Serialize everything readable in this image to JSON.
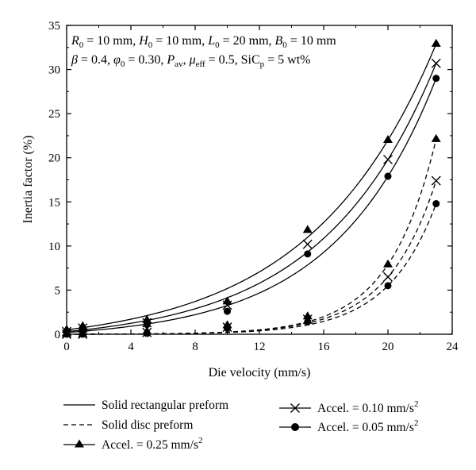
{
  "chart_data": {
    "type": "line",
    "xlabel": "Die velocity (mm/s)",
    "ylabel": "Inertia factor (%)",
    "xlim": [
      0,
      24
    ],
    "ylim": [
      0,
      35
    ],
    "xticks": [
      0,
      4,
      8,
      12,
      16,
      20,
      24
    ],
    "yticks": [
      0,
      5,
      10,
      15,
      20,
      25,
      30,
      35
    ],
    "xtick_labels": [
      "0",
      "4",
      "8",
      "12",
      "16",
      "20",
      "24"
    ],
    "ytick_labels": [
      "0",
      "5",
      "10",
      "15",
      "20",
      "25",
      "30",
      "35"
    ],
    "grid": false,
    "annotation": {
      "line1": "R0 = 10 mm, H0 = 10 mm, L0 = 20 mm, B0 = 10 mm",
      "line2": "β = 0.4, φ0 = 0.30, Pav, μeff = 0.5, SiCp = 5 wt%",
      "r0": "R",
      "r0_sub": "0",
      "r0_val": " = 10 mm, ",
      "h0": "H",
      "h0_sub": "0",
      "h0_val": " = 10 mm, ",
      "l0": "L",
      "l0_sub": "0",
      "l0_val": " = 20 mm, ",
      "b0": "B",
      "b0_sub": "0",
      "b0_val": " = 10 mm",
      "beta": "β",
      "beta_val": " = 0.4, ",
      "phi": "φ",
      "phi_sub": "0",
      "phi_val": " = 0.30, ",
      "p": "P",
      "p_sub": "av",
      "p_val": ", ",
      "mu": "μ",
      "mu_sub": "eff",
      "mu_val": " = 0.5, ",
      "sic": "SiC",
      "sic_sub": "p",
      "sic_val": " = 5 wt%"
    },
    "x": [
      0,
      1,
      5,
      10,
      15,
      20,
      23
    ],
    "series": [
      {
        "name": "Accel. = 0.25 mm/s2",
        "preform": "Solid rectangular preform",
        "line": "solid",
        "marker": "triangle",
        "values": [
          0.5,
          0.9,
          1.6,
          3.7,
          11.8,
          22.0,
          32.9
        ]
      },
      {
        "name": "Accel. = 0.10 mm/s2",
        "preform": "Solid rectangular preform",
        "line": "solid",
        "marker": "x",
        "values": [
          0.3,
          0.7,
          1.3,
          3.3,
          10.2,
          19.8,
          30.7
        ]
      },
      {
        "name": "Accel. = 0.05 mm/s2",
        "preform": "Solid rectangular preform",
        "line": "solid",
        "marker": "circle",
        "values": [
          0.2,
          0.5,
          1.1,
          2.6,
          9.1,
          17.9,
          29.0
        ]
      },
      {
        "name": "Accel. = 0.25 mm/s2",
        "preform": "Solid disc preform",
        "line": "dashed",
        "marker": "triangle",
        "values": [
          0.0,
          0.0,
          0.3,
          1.0,
          2.0,
          7.9,
          22.1
        ]
      },
      {
        "name": "Accel. = 0.10 mm/s2",
        "preform": "Solid disc preform",
        "line": "dashed",
        "marker": "x",
        "values": [
          0.0,
          0.0,
          0.2,
          0.8,
          1.7,
          6.5,
          17.4
        ]
      },
      {
        "name": "Accel. = 0.05 mm/s2",
        "preform": "Solid disc preform",
        "line": "dashed",
        "marker": "circle",
        "values": [
          0.0,
          0.0,
          0.1,
          0.7,
          1.4,
          5.5,
          14.8
        ]
      }
    ],
    "legend": {
      "placement": "bottom",
      "solid": "Solid rectangular preform",
      "dashed": "Solid disc preform",
      "tri": "Accel. = 0.25 mm/s",
      "tri_sup": "2",
      "x": "Accel. = 0.10 mm/s",
      "x_sup": "2",
      "circle": "Accel. = 0.05 mm/s",
      "circle_sup": "2"
    }
  }
}
